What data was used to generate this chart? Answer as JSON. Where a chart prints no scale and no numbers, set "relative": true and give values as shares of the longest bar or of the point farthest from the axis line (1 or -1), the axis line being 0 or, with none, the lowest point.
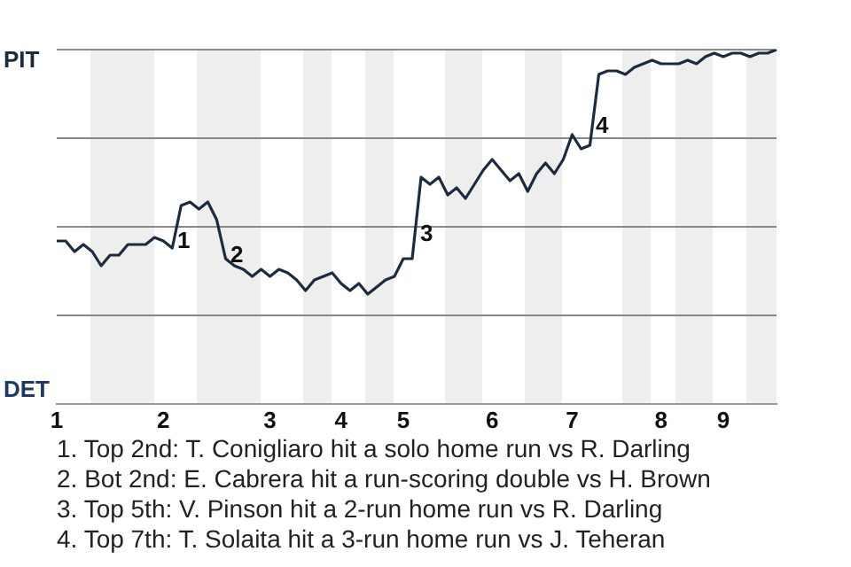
{
  "chart_data": {
    "type": "line",
    "categories": [
      "1",
      null,
      null,
      null,
      null,
      null,
      null,
      null,
      null,
      null,
      null,
      null,
      "2",
      null,
      null,
      null,
      null,
      null,
      null,
      null,
      null,
      null,
      null,
      null,
      "3",
      null,
      null,
      null,
      null,
      null,
      null,
      null,
      "4",
      null,
      null,
      null,
      null,
      null,
      null,
      "5",
      null,
      null,
      null,
      null,
      null,
      null,
      null,
      null,
      null,
      "6",
      null,
      null,
      null,
      null,
      null,
      null,
      null,
      null,
      "7",
      null,
      null,
      null,
      null,
      null,
      null,
      null,
      null,
      null,
      "8",
      null,
      null,
      null,
      null,
      null,
      null,
      "9",
      null,
      null,
      null,
      null,
      null,
      null
    ],
    "series": [
      {
        "color": "#1c2b3f",
        "values": [
          0.46,
          0.46,
          0.43,
          0.45,
          0.43,
          0.39,
          0.42,
          0.42,
          0.45,
          0.45,
          0.45,
          0.47,
          0.46,
          0.44,
          0.56,
          0.57,
          0.55,
          0.57,
          0.52,
          0.41,
          0.39,
          0.38,
          0.36,
          0.38,
          0.36,
          0.38,
          0.37,
          0.35,
          0.32,
          0.35,
          0.36,
          0.37,
          0.34,
          0.32,
          0.34,
          0.31,
          0.33,
          0.35,
          0.36,
          0.41,
          0.41,
          0.64,
          0.62,
          0.64,
          0.59,
          0.61,
          0.58,
          0.62,
          0.66,
          0.69,
          0.66,
          0.63,
          0.65,
          0.6,
          0.65,
          0.68,
          0.65,
          0.69,
          0.76,
          0.72,
          0.73,
          0.93,
          0.94,
          0.94,
          0.93,
          0.95,
          0.96,
          0.97,
          0.96,
          0.96,
          0.96,
          0.97,
          0.96,
          0.98,
          0.99,
          0.98,
          0.99,
          0.99,
          0.98,
          0.99,
          0.99,
          1
        ]
      }
    ],
    "relative": true,
    "grid": "y",
    "legend": false,
    "marker": "none",
    "line_style": "solid",
    "annotations": [
      "PIT",
      "DET",
      "1",
      "2",
      "3",
      "4",
      "1. Top 2nd: T. Conigliaro hit a solo home run vs R. Darling",
      "2. Bot 2nd: E. Cabrera hit a run-scoring double vs H. Brown",
      "3. Top 5th: V. Pinson hit a 2-run home run vs R. Darling",
      "4. Top 7th: T. Solaita hit a 3-run home run vs J. Teheran"
    ]
  }
}
